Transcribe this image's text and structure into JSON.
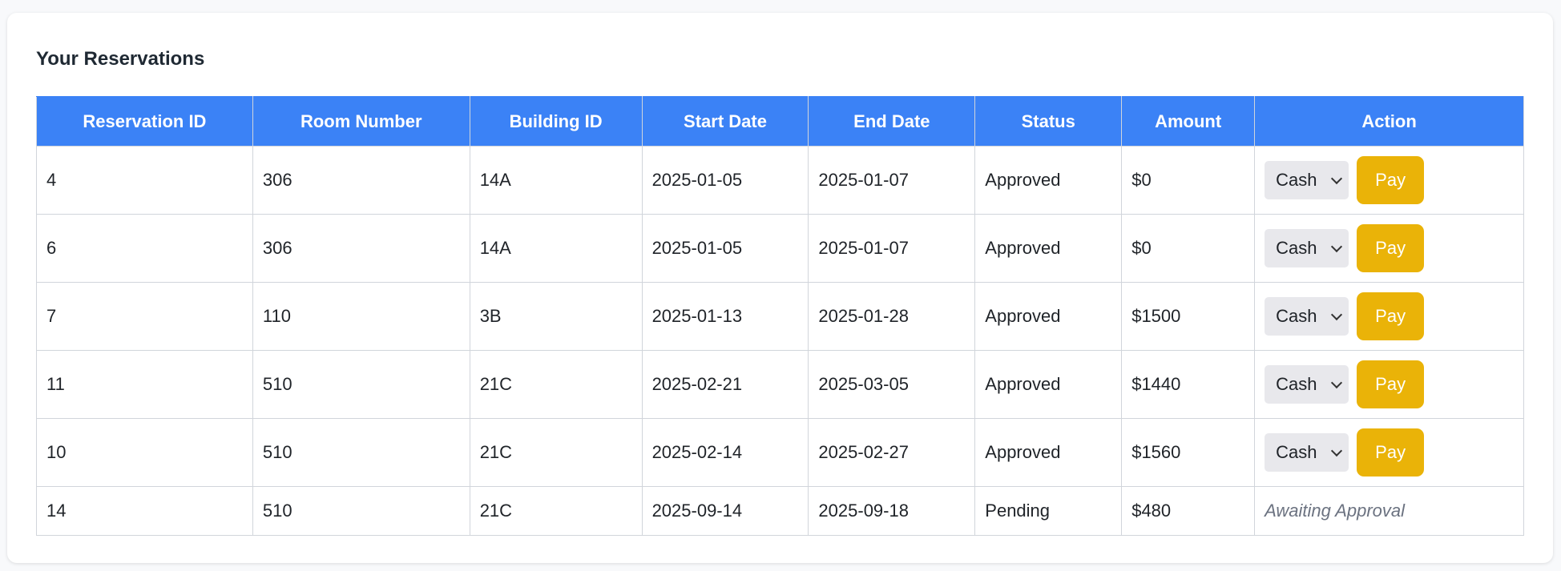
{
  "title": "Your Reservations",
  "colors": {
    "header_bg": "#3b82f6",
    "pay_button": "#eab308",
    "select_bg": "#e8e8ec"
  },
  "columns": [
    "Reservation ID",
    "Room Number",
    "Building ID",
    "Start Date",
    "End Date",
    "Status",
    "Amount",
    "Action"
  ],
  "rows": [
    {
      "id": "4",
      "room": "306",
      "building": "14A",
      "start": "2025-01-05",
      "end": "2025-01-07",
      "status": "Approved",
      "amount": "$0",
      "method": "Cash",
      "pay_label": "Pay"
    },
    {
      "id": "6",
      "room": "306",
      "building": "14A",
      "start": "2025-01-05",
      "end": "2025-01-07",
      "status": "Approved",
      "amount": "$0",
      "method": "Cash",
      "pay_label": "Pay"
    },
    {
      "id": "7",
      "room": "110",
      "building": "3B",
      "start": "2025-01-13",
      "end": "2025-01-28",
      "status": "Approved",
      "amount": "$1500",
      "method": "Cash",
      "pay_label": "Pay"
    },
    {
      "id": "11",
      "room": "510",
      "building": "21C",
      "start": "2025-02-21",
      "end": "2025-03-05",
      "status": "Approved",
      "amount": "$1440",
      "method": "Cash",
      "pay_label": "Pay"
    },
    {
      "id": "10",
      "room": "510",
      "building": "21C",
      "start": "2025-02-14",
      "end": "2025-02-27",
      "status": "Approved",
      "amount": "$1560",
      "method": "Cash",
      "pay_label": "Pay"
    },
    {
      "id": "14",
      "room": "510",
      "building": "21C",
      "start": "2025-09-14",
      "end": "2025-09-18",
      "status": "Pending",
      "amount": "$480",
      "action_text": "Awaiting Approval"
    }
  ]
}
